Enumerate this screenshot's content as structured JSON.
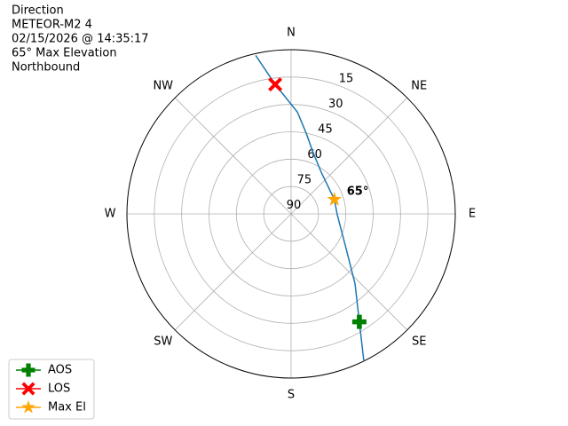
{
  "chart_data": {
    "type": "polar",
    "title": [
      "Direction",
      "METEOR-M2 4",
      "02/15/2026 @ 14:35:17",
      "65° Max Elevation",
      "Northbound"
    ],
    "rlim": [
      90,
      0
    ],
    "rticks": [
      15,
      30,
      45,
      60,
      75,
      90
    ],
    "thetaticks": [
      {
        "value": 0,
        "label": "N"
      },
      {
        "value": 45,
        "label": "NE"
      },
      {
        "value": 90,
        "label": "E"
      },
      {
        "value": 135,
        "label": "SE"
      },
      {
        "value": 180,
        "label": "S"
      },
      {
        "value": 225,
        "label": "SW"
      },
      {
        "value": 270,
        "label": "W"
      },
      {
        "value": 315,
        "label": "NW"
      }
    ],
    "grid": true,
    "legend": "lower left",
    "annotation": "65°",
    "series": [
      {
        "marker": "line",
        "color": "#1f77b4",
        "theta": [
          153.7,
          147.7,
          137.6,
          122,
          91,
          71.6,
          36.5,
          18.7,
          10.6,
          3.5,
          353,
          347.4
        ],
        "values": [
          0,
          20,
          38,
          54.5,
          64.7,
          65,
          62,
          53.5,
          45,
          34,
          18.5,
          1
        ]
      },
      {
        "name": "AOS",
        "marker": "plus",
        "color": "#008000",
        "theta": [
          147.7
        ],
        "values": [
          20
        ]
      },
      {
        "name": "LOS",
        "marker": "x",
        "color": "#ff0000",
        "theta": [
          353
        ],
        "values": [
          18.5
        ]
      },
      {
        "name": "Max El",
        "marker": "star",
        "color": "#ffa500",
        "theta": [
          71.6
        ],
        "values": [
          65
        ]
      }
    ]
  }
}
